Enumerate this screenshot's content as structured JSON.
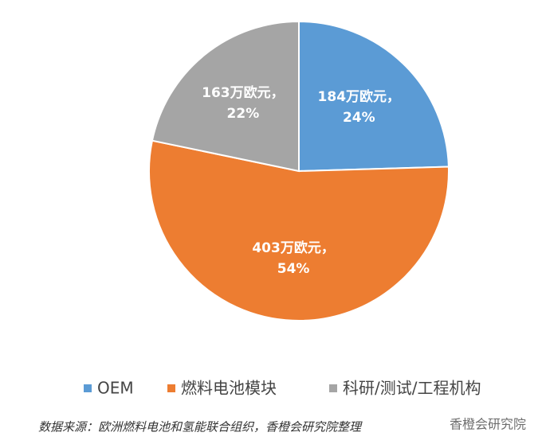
{
  "chart_data": {
    "type": "pie",
    "categories": [
      "OEM",
      "燃料电池模块",
      "科研/测试/工程机构"
    ],
    "values": [
      184,
      403,
      163
    ],
    "value_labels": [
      "184万欧元，",
      "403万欧元，",
      "163万欧元，"
    ],
    "percents": [
      24,
      54,
      22
    ],
    "percent_labels": [
      "24%",
      "54%",
      "22%"
    ],
    "colors": [
      "#5b9bd5",
      "#ed7d31",
      "#a5a5a5"
    ],
    "legend": "bottom",
    "source": "数据来源：欧洲燃料电池和氢能联合组织，香橙会研究院整理",
    "watermark": "香橙会研究院"
  }
}
